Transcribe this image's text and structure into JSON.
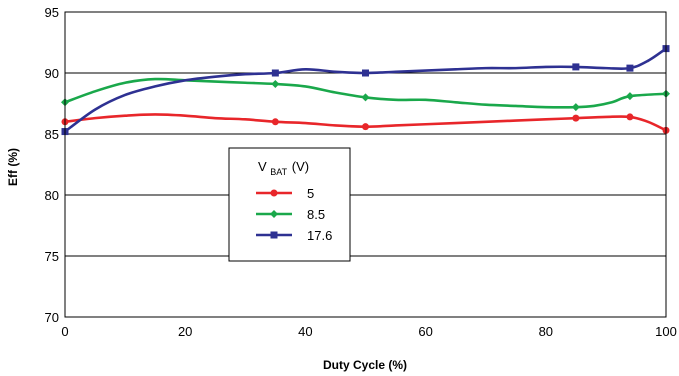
{
  "chart_data": {
    "type": "line",
    "title": "",
    "xlabel": "Duty Cycle (%)",
    "ylabel": "Eff (%)",
    "xlim": [
      0,
      100
    ],
    "ylim": [
      70,
      95
    ],
    "xticks": [
      0,
      20,
      40,
      60,
      80,
      100
    ],
    "yticks": [
      70,
      75,
      80,
      85,
      90,
      95
    ],
    "grid": "horizontal",
    "legend": {
      "title_main": "V",
      "title_sub": "BAT",
      "title_unit": "(V)",
      "placement": "center-left"
    },
    "series": [
      {
        "name": "5",
        "color": "#e8262a",
        "marker": "circle",
        "x": [
          0,
          5,
          10,
          15,
          20,
          25,
          30,
          35,
          40,
          45,
          50,
          55,
          60,
          65,
          70,
          75,
          80,
          85,
          90,
          94,
          97,
          100
        ],
        "y": [
          86.0,
          86.3,
          86.5,
          86.6,
          86.5,
          86.3,
          86.2,
          86.0,
          85.9,
          85.7,
          85.6,
          85.7,
          85.8,
          85.9,
          86.0,
          86.1,
          86.2,
          86.3,
          86.4,
          86.4,
          86.0,
          85.3
        ],
        "marker_x": [
          0,
          35,
          50,
          85,
          94,
          100
        ],
        "marker_y": [
          86.0,
          86.0,
          85.6,
          86.3,
          86.4,
          85.3
        ]
      },
      {
        "name": "8.5",
        "color": "#1aa84b",
        "marker": "diamond",
        "x": [
          0,
          5,
          10,
          15,
          20,
          25,
          30,
          35,
          40,
          45,
          50,
          55,
          60,
          65,
          70,
          75,
          80,
          85,
          88,
          91,
          94,
          100
        ],
        "y": [
          87.6,
          88.5,
          89.2,
          89.5,
          89.4,
          89.3,
          89.2,
          89.1,
          88.9,
          88.4,
          88.0,
          87.8,
          87.8,
          87.6,
          87.4,
          87.3,
          87.2,
          87.2,
          87.3,
          87.6,
          88.1,
          88.3
        ],
        "marker_x": [
          0,
          35,
          50,
          85,
          94,
          100
        ],
        "marker_y": [
          87.6,
          89.1,
          88.0,
          87.2,
          88.1,
          88.3
        ]
      },
      {
        "name": "17.6",
        "color": "#2e3192",
        "marker": "square",
        "x": [
          0,
          5,
          10,
          15,
          20,
          25,
          30,
          35,
          40,
          45,
          50,
          55,
          60,
          65,
          70,
          75,
          80,
          85,
          90,
          94,
          97,
          100
        ],
        "y": [
          85.2,
          87.0,
          88.2,
          88.9,
          89.4,
          89.7,
          89.9,
          90.0,
          90.3,
          90.1,
          90.0,
          90.1,
          90.2,
          90.3,
          90.4,
          90.4,
          90.5,
          90.5,
          90.4,
          90.4,
          91.0,
          92.0
        ],
        "marker_x": [
          0,
          35,
          50,
          85,
          94,
          100
        ],
        "marker_y": [
          85.2,
          90.0,
          90.0,
          90.5,
          90.4,
          92.0
        ]
      }
    ]
  }
}
